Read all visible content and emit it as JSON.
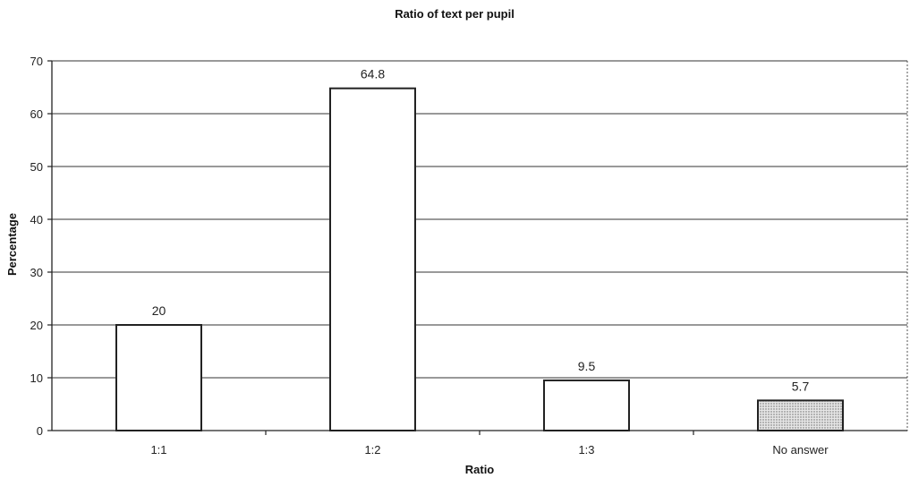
{
  "chart_data": {
    "type": "bar",
    "title": "Ratio of text per pupil",
    "xlabel": "Ratio",
    "ylabel": "Percentage",
    "categories": [
      "1:1",
      "1:2",
      "1:3",
      "No answer"
    ],
    "values": [
      20,
      64.8,
      9.5,
      5.7
    ],
    "data_labels": [
      "20",
      "64.8",
      "9.5",
      "5.7"
    ],
    "ylim": [
      0,
      70
    ],
    "yticks": [
      0,
      10,
      20,
      30,
      40,
      50,
      60,
      70
    ],
    "grid": true,
    "legend": "none",
    "colors": {
      "default_bar_fill": "#ffffff",
      "no_answer_fill": "dotted-gray",
      "bar_stroke": "#222222"
    }
  }
}
